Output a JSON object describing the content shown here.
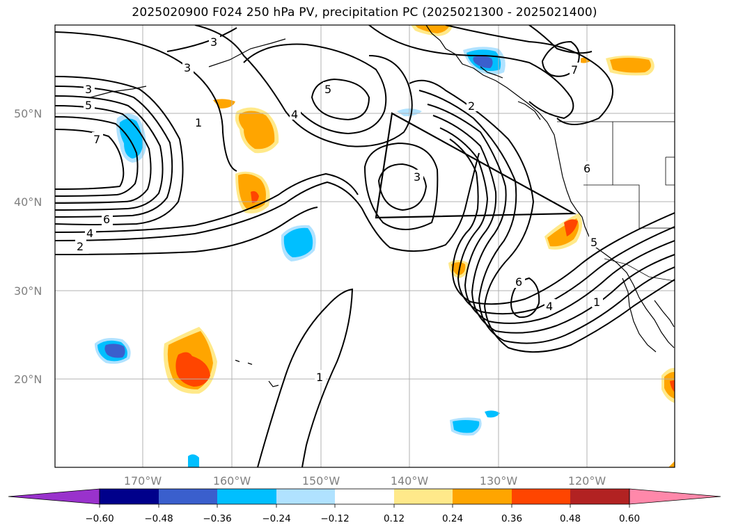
{
  "title": "2025020900 F024 250 hPa PV, precipitation PC (2025021300 - 2025021400)",
  "latitude_labels": [
    "50°N",
    "40°N",
    "30°N",
    "20°N"
  ],
  "longitude_labels": [
    "170°W",
    "160°W",
    "150°W",
    "140°W",
    "130°W",
    "120°W"
  ],
  "colorbar": {
    "tick_labels": [
      "−0.60",
      "−0.48",
      "−0.36",
      "−0.24",
      "−0.12",
      "0.12",
      "0.24",
      "0.36",
      "0.48",
      "0.60"
    ],
    "colors": [
      "#9932cc",
      "#00008b",
      "#3a5fcd",
      "#00bfff",
      "#b0e2ff",
      "#ffffff",
      "#ffe98a",
      "#ffa500",
      "#ff4500",
      "#b22222",
      "#ff88aa"
    ]
  },
  "contour_labels": [
    "3",
    "5",
    "7",
    "6",
    "4",
    "2",
    "3",
    "1",
    "4",
    "5",
    "2",
    "3",
    "7",
    "6",
    "5",
    "6",
    "4",
    "1",
    "1",
    "3"
  ]
}
